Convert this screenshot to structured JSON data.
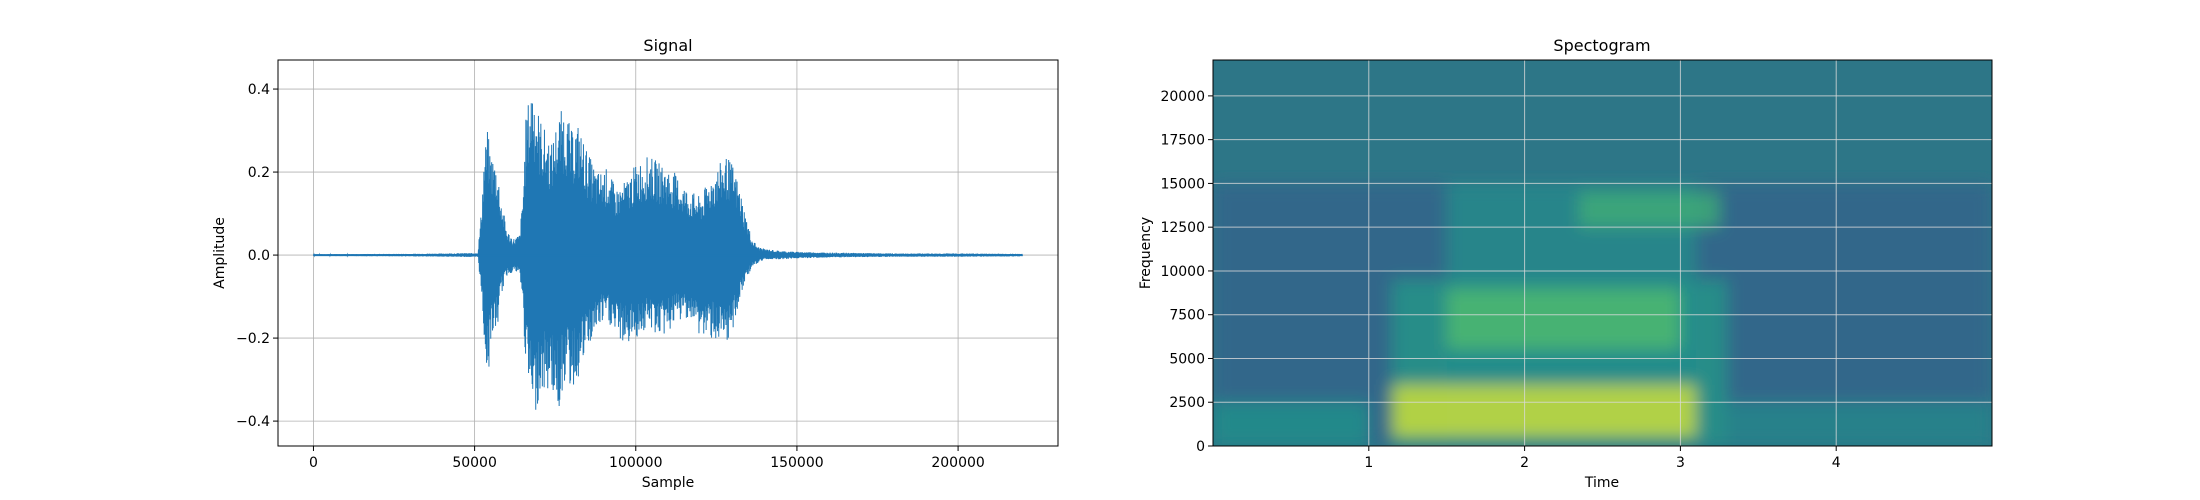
{
  "chart_data": [
    {
      "type": "line",
      "title": "Signal",
      "xlabel": "Sample",
      "ylabel": "Amplitude",
      "xlim": [
        -11000,
        231000
      ],
      "ylim": [
        -0.46,
        0.47
      ],
      "xticks": [
        0,
        50000,
        100000,
        150000,
        200000
      ],
      "xtick_labels": [
        "0",
        "50000",
        "100000",
        "150000",
        "200000"
      ],
      "yticks": [
        -0.4,
        -0.2,
        0.0,
        0.2,
        0.4
      ],
      "ytick_labels": [
        "−0.4",
        "−0.2",
        "0.0",
        "0.2",
        "0.4"
      ],
      "grid": true,
      "line_color": "#1f77b4",
      "series": [
        {
          "envelope_x": [
            0,
            30000,
            51000,
            52000,
            53000,
            54000,
            55000,
            57000,
            58000,
            60000,
            62000,
            64000,
            65000,
            66000,
            67000,
            68000,
            70000,
            72000,
            74000,
            76000,
            78000,
            80000,
            82000,
            85000,
            88000,
            91000,
            94000,
            97000,
            100000,
            104000,
            108000,
            112000,
            116000,
            120000,
            124000,
            128000,
            130000,
            132000,
            134000,
            136000,
            138000,
            140000,
            145000,
            150000,
            160000,
            180000,
            200000,
            220000
          ],
          "envelope_upper": [
            0.002,
            0.003,
            0.005,
            0.1,
            0.25,
            0.3,
            0.25,
            0.22,
            0.15,
            0.06,
            0.04,
            0.05,
            0.15,
            0.35,
            0.38,
            0.43,
            0.34,
            0.3,
            0.27,
            0.34,
            0.36,
            0.3,
            0.32,
            0.25,
            0.2,
            0.21,
            0.16,
            0.18,
            0.22,
            0.24,
            0.22,
            0.2,
            0.16,
            0.14,
            0.2,
            0.24,
            0.22,
            0.17,
            0.1,
            0.04,
            0.02,
            0.015,
            0.01,
            0.008,
            0.006,
            0.004,
            0.004,
            0.003
          ],
          "envelope_lower": [
            -0.002,
            -0.003,
            -0.005,
            -0.1,
            -0.22,
            -0.31,
            -0.2,
            -0.18,
            -0.1,
            -0.05,
            -0.04,
            -0.05,
            -0.15,
            -0.3,
            -0.33,
            -0.41,
            -0.34,
            -0.33,
            -0.33,
            -0.38,
            -0.3,
            -0.33,
            -0.3,
            -0.23,
            -0.18,
            -0.16,
            -0.2,
            -0.22,
            -0.2,
            -0.18,
            -0.2,
            -0.17,
            -0.15,
            -0.2,
            -0.2,
            -0.24,
            -0.18,
            -0.12,
            -0.06,
            -0.03,
            -0.02,
            -0.01,
            -0.01,
            -0.008,
            -0.006,
            -0.004,
            -0.004,
            -0.003
          ]
        }
      ]
    },
    {
      "type": "heatmap",
      "title": "Spectogram",
      "xlabel": "Time",
      "ylabel": "Frequency",
      "xlim": [
        0,
        5
      ],
      "ylim": [
        0,
        22050
      ],
      "xticks": [
        1,
        2,
        3,
        4
      ],
      "xtick_labels": [
        "1",
        "2",
        "3",
        "4"
      ],
      "yticks": [
        0,
        2500,
        5000,
        7500,
        10000,
        12500,
        15000,
        17500,
        20000
      ],
      "ytick_labels": [
        "0",
        "2500",
        "5000",
        "7500",
        "10000",
        "12500",
        "15000",
        "17500",
        "20000"
      ],
      "grid": true,
      "colormap": "viridis",
      "background_color": "#2d7687",
      "energy_regions": [
        {
          "t0": 0.0,
          "t1": 5.0,
          "f0": 0,
          "f1": 15000,
          "level": 0.32
        },
        {
          "t0": 1.15,
          "t1": 3.3,
          "f0": 0,
          "f1": 9500,
          "level": 0.52
        },
        {
          "t0": 1.5,
          "t1": 3.1,
          "f0": 0,
          "f1": 15000,
          "level": 0.48
        },
        {
          "t0": 1.15,
          "t1": 3.1,
          "f0": 500,
          "f1": 3500,
          "level": 0.92
        },
        {
          "t0": 1.5,
          "t1": 3.0,
          "f0": 5500,
          "f1": 9000,
          "level": 0.68
        },
        {
          "t0": 2.35,
          "t1": 3.25,
          "f0": 12500,
          "f1": 14500,
          "level": 0.62
        },
        {
          "t0": 0.0,
          "t1": 1.0,
          "f0": 0,
          "f1": 2500,
          "level": 0.5
        },
        {
          "t0": 3.3,
          "t1": 5.0,
          "f0": 0,
          "f1": 2500,
          "level": 0.46
        }
      ]
    }
  ]
}
